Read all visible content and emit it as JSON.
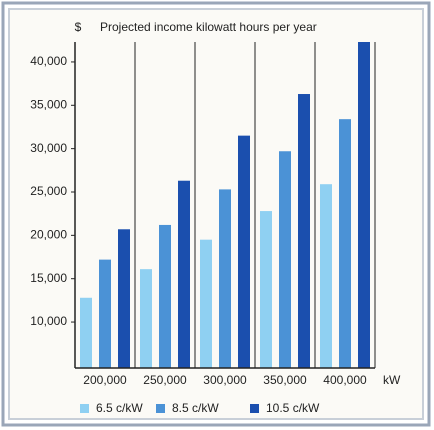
{
  "chart_data": {
    "type": "bar",
    "title": "Projected income kilowatt hours per year",
    "y_label": "$",
    "x_label": "kW",
    "categories": [
      "200,000",
      "250,000",
      "300,000",
      "350,000",
      "400,000"
    ],
    "series": [
      {
        "name": "6.5 c/kW",
        "color": "#8fd0f2",
        "values": [
          12800,
          16100,
          19500,
          22800,
          25900
        ]
      },
      {
        "name": "8.5 c/kW",
        "color": "#4b92d6",
        "values": [
          17200,
          21200,
          25300,
          29700,
          33400
        ]
      },
      {
        "name": "10.5 c/kW",
        "color": "#1b4fae",
        "values": [
          20700,
          26300,
          31500,
          36300,
          42300
        ]
      }
    ],
    "ylim": [
      4700,
      42300
    ],
    "yticks": [
      {
        "value": 10000,
        "label": "10,000"
      },
      {
        "value": 15000,
        "label": "15,000"
      },
      {
        "value": 20000,
        "label": "20,000"
      },
      {
        "value": 25000,
        "label": "25,000"
      },
      {
        "value": 30000,
        "label": "30,000"
      },
      {
        "value": 35000,
        "label": "35,000"
      },
      {
        "value": 40000,
        "label": "40,000"
      }
    ],
    "legend": "bottom"
  }
}
